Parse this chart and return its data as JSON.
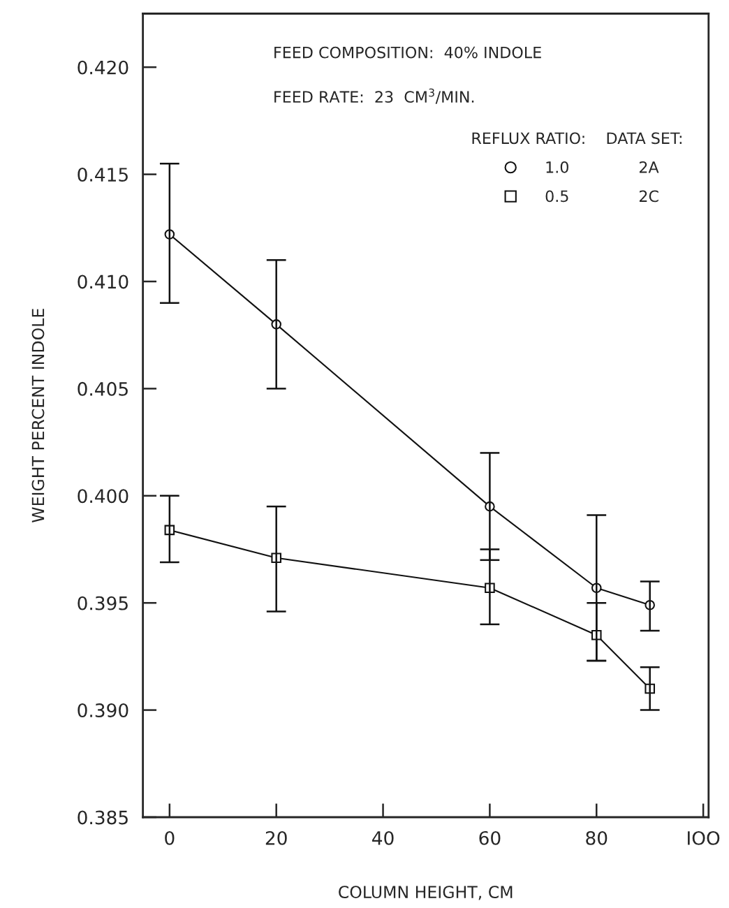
{
  "chart_data": {
    "type": "line",
    "xlabel": "COLUMN HEIGHT, CM",
    "ylabel": "WEIGHT PERCENT INDOLE",
    "annotations": [
      "FEED COMPOSITION:  40% INDOLE",
      "FEED RATE:  23  CM$^{3}$/MIN."
    ],
    "legend_title": "REFLUX RATIO:    DATA SET:",
    "legend": "top right",
    "x": [
      0,
      20,
      60,
      80,
      90
    ],
    "series": [
      {
        "name": "1.0              2A",
        "color": "#111111",
        "marker": "circle",
        "values": [
          0.4122,
          0.408,
          0.3995,
          0.3957,
          0.3949
        ],
        "errors": [
          [
            0.409,
            0.4155
          ],
          [
            0.405,
            0.411
          ],
          [
            0.397,
            0.402
          ],
          [
            0.3923,
            0.3991
          ],
          [
            0.3937,
            0.396
          ]
        ]
      },
      {
        "name": "0.5              2C",
        "color": "#111111",
        "marker": "square",
        "values": [
          0.3984,
          0.3971,
          0.3957,
          0.3935,
          0.391
        ],
        "errors": [
          [
            0.3969,
            0.4
          ],
          [
            0.3946,
            0.3995
          ],
          [
            0.394,
            0.3975
          ],
          [
            0.3923,
            0.395
          ],
          [
            0.39,
            0.392
          ]
        ]
      }
    ],
    "xlim": [
      -5,
      101
    ],
    "xticks": [
      0,
      20,
      40,
      60,
      80,
      {
        "value": 100,
        "label": "IOO"
      }
    ],
    "ylim": [
      0.385,
      0.4225
    ],
    "yticks": [
      {
        "value": 0.385,
        "label": "0.385"
      },
      {
        "value": 0.39,
        "label": "0.390"
      },
      {
        "value": 0.395,
        "label": "0.395"
      },
      {
        "value": 0.4,
        "label": "0.400"
      },
      {
        "value": 0.405,
        "label": "0.405"
      },
      {
        "value": 0.41,
        "label": "0.410"
      },
      {
        "value": 0.415,
        "label": "0.415"
      },
      {
        "value": 0.42,
        "label": "0.420"
      }
    ],
    "grid": false
  }
}
